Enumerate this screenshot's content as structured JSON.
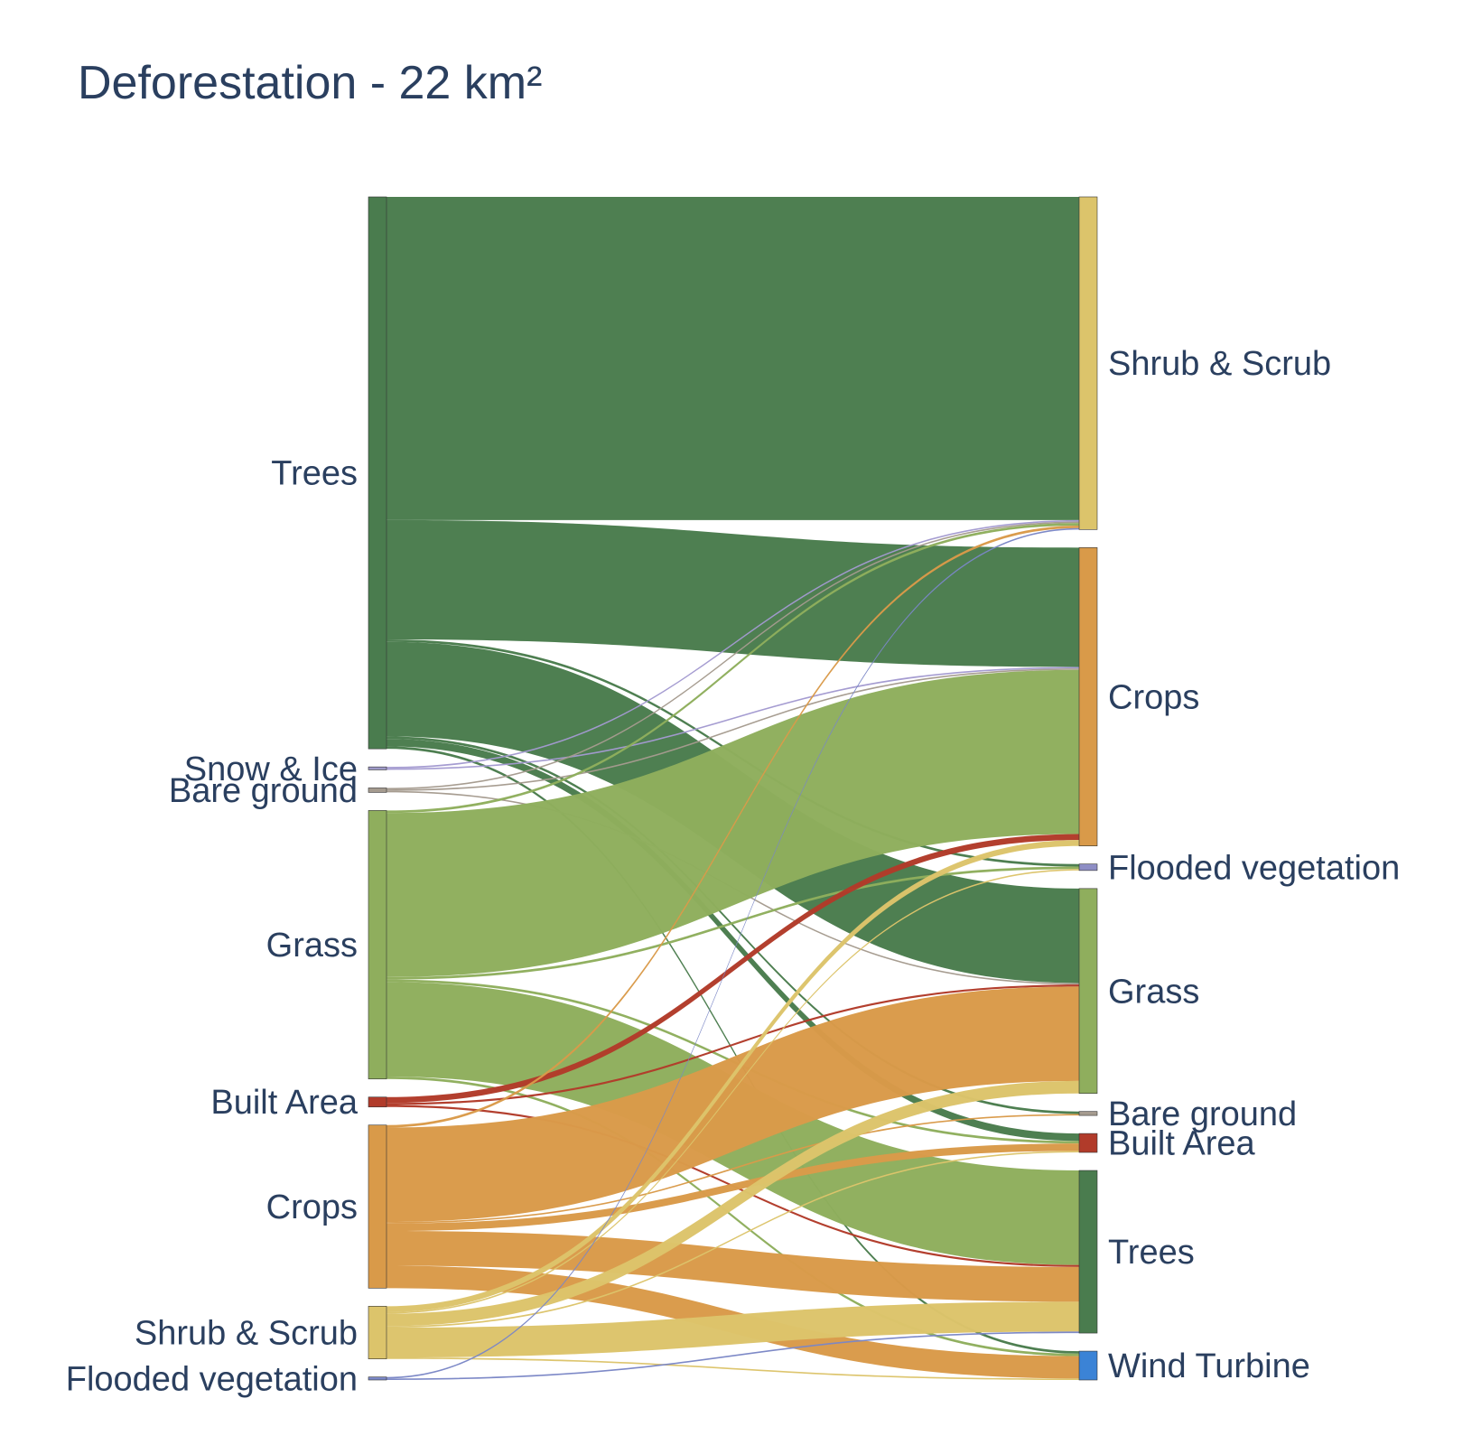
{
  "title": "Deforestation - 22 km²",
  "chart_data": {
    "type": "sankey",
    "title": "Deforestation - 22 km²",
    "sources": [
      {
        "id": "src-trees",
        "label": "Trees",
        "color": "#4a7c4e"
      },
      {
        "id": "src-snow",
        "label": "Snow & Ice",
        "color": "#9e9ac8"
      },
      {
        "id": "src-bare",
        "label": "Bare ground",
        "color": "#a59b8f"
      },
      {
        "id": "src-grass",
        "label": "Grass",
        "color": "#8fae5d"
      },
      {
        "id": "src-built",
        "label": "Built Area",
        "color": "#b13b2a"
      },
      {
        "id": "src-crops",
        "label": "Crops",
        "color": "#d99a49"
      },
      {
        "id": "src-shrub",
        "label": "Shrub & Scrub",
        "color": "#dcc46b"
      },
      {
        "id": "src-flooded",
        "label": "Flooded vegetation",
        "color": "#7a87c6"
      }
    ],
    "targets": [
      {
        "id": "tgt-shrub",
        "label": "Shrub & Scrub",
        "color": "#dcc46b"
      },
      {
        "id": "tgt-crops",
        "label": "Crops",
        "color": "#d99a49"
      },
      {
        "id": "tgt-flooded",
        "label": "Flooded vegetation",
        "color": "#8e8ec5"
      },
      {
        "id": "tgt-grass",
        "label": "Grass",
        "color": "#8fae5d"
      },
      {
        "id": "tgt-bare",
        "label": "Bare ground",
        "color": "#a59b8f"
      },
      {
        "id": "tgt-built",
        "label": "Built Area",
        "color": "#b13b2a"
      },
      {
        "id": "tgt-trees",
        "label": "Trees",
        "color": "#4a7c4e"
      },
      {
        "id": "tgt-wind",
        "label": "Wind Turbine",
        "color": "#3b83d6"
      }
    ],
    "links": [
      {
        "source": "src-trees",
        "target": "tgt-shrub",
        "value": 6.5
      },
      {
        "source": "src-trees",
        "target": "tgt-crops",
        "value": 2.4
      },
      {
        "source": "src-trees",
        "target": "tgt-flooded",
        "value": 0.05
      },
      {
        "source": "src-trees",
        "target": "tgt-grass",
        "value": 1.9
      },
      {
        "source": "src-trees",
        "target": "tgt-bare",
        "value": 0.05
      },
      {
        "source": "src-trees",
        "target": "tgt-built",
        "value": 0.15
      },
      {
        "source": "src-trees",
        "target": "tgt-wind",
        "value": 0.05
      },
      {
        "source": "src-snow",
        "target": "tgt-shrub",
        "value": 0.03
      },
      {
        "source": "src-snow",
        "target": "tgt-crops",
        "value": 0.03
      },
      {
        "source": "src-bare",
        "target": "tgt-shrub",
        "value": 0.03
      },
      {
        "source": "src-bare",
        "target": "tgt-crops",
        "value": 0.03
      },
      {
        "source": "src-bare",
        "target": "tgt-grass",
        "value": 0.03
      },
      {
        "source": "src-grass",
        "target": "tgt-shrub",
        "value": 0.05
      },
      {
        "source": "src-grass",
        "target": "tgt-crops",
        "value": 3.3
      },
      {
        "source": "src-grass",
        "target": "tgt-flooded",
        "value": 0.05
      },
      {
        "source": "src-grass",
        "target": "tgt-built",
        "value": 0.05
      },
      {
        "source": "src-grass",
        "target": "tgt-trees",
        "value": 1.9
      },
      {
        "source": "src-grass",
        "target": "tgt-wind",
        "value": 0.05
      },
      {
        "source": "src-built",
        "target": "tgt-crops",
        "value": 0.12
      },
      {
        "source": "src-built",
        "target": "tgt-grass",
        "value": 0.04
      },
      {
        "source": "src-built",
        "target": "tgt-trees",
        "value": 0.04
      },
      {
        "source": "src-crops",
        "target": "tgt-shrub",
        "value": 0.05
      },
      {
        "source": "src-crops",
        "target": "tgt-grass",
        "value": 1.9
      },
      {
        "source": "src-crops",
        "target": "tgt-bare",
        "value": 0.03
      },
      {
        "source": "src-crops",
        "target": "tgt-built",
        "value": 0.15
      },
      {
        "source": "src-crops",
        "target": "tgt-trees",
        "value": 0.7
      },
      {
        "source": "src-crops",
        "target": "tgt-wind",
        "value": 0.45
      },
      {
        "source": "src-shrub",
        "target": "tgt-crops",
        "value": 0.12
      },
      {
        "source": "src-shrub",
        "target": "tgt-flooded",
        "value": 0.03
      },
      {
        "source": "src-shrub",
        "target": "tgt-grass",
        "value": 0.25
      },
      {
        "source": "src-shrub",
        "target": "tgt-built",
        "value": 0.03
      },
      {
        "source": "src-shrub",
        "target": "tgt-trees",
        "value": 0.6
      },
      {
        "source": "src-shrub",
        "target": "tgt-wind",
        "value": 0.03
      },
      {
        "source": "src-flooded",
        "target": "tgt-shrub",
        "value": 0.03
      },
      {
        "source": "src-flooded",
        "target": "tgt-trees",
        "value": 0.03
      }
    ]
  }
}
